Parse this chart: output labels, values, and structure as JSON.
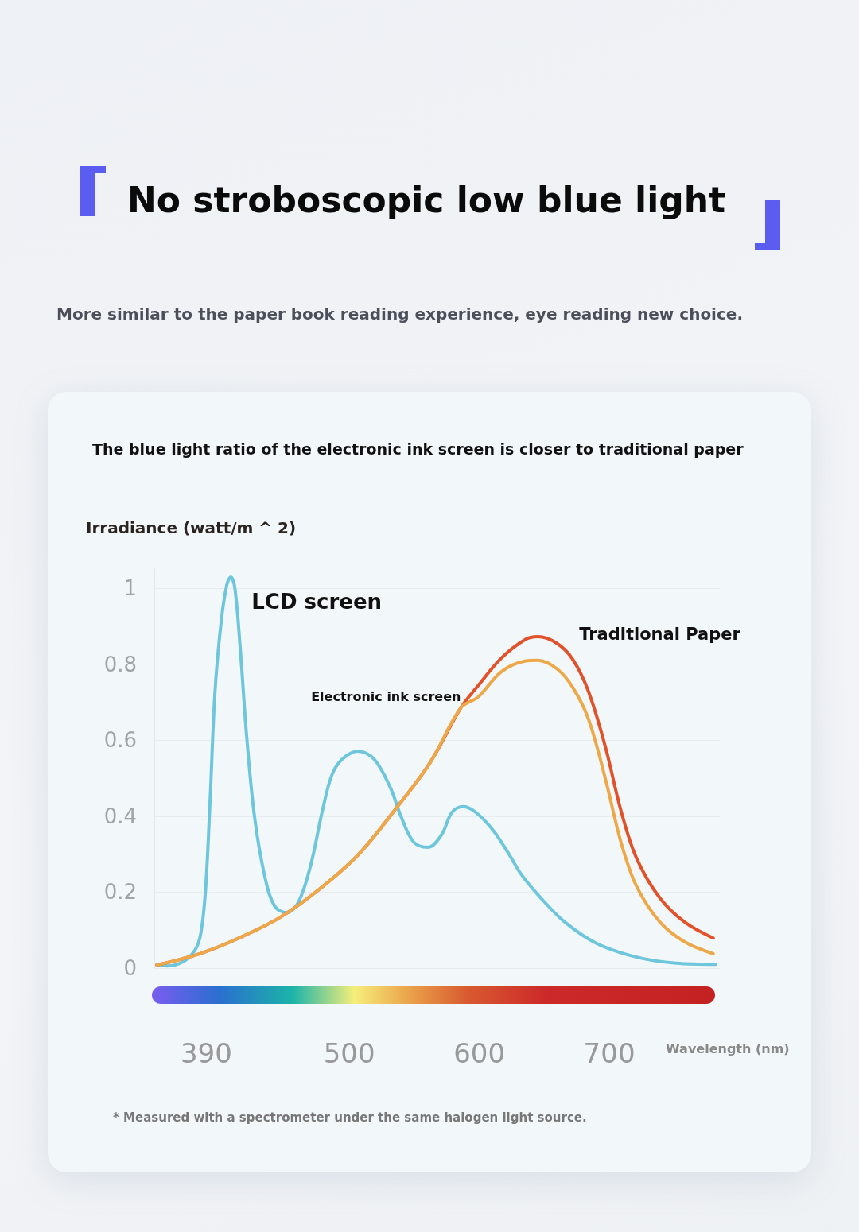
{
  "chart_data": {
    "type": "line",
    "title": "No stroboscopic low blue light",
    "subtitle": "More similar to the paper book reading experience, eye reading new choice.",
    "annotations": [
      "The blue light ratio of the electronic ink screen is closer to traditional paper",
      "* Measured with a spectrometer under the same halogen light source."
    ],
    "xlabel": "Wavelength (nm)",
    "ylabel": "Irradiance (watt/m ^ 2)",
    "xlim": [
      350,
      785
    ],
    "xticks": [
      390,
      500,
      600,
      700
    ],
    "ylim": [
      0,
      1.05
    ],
    "yticks": [
      0,
      0.2,
      0.4,
      0.6,
      0.8,
      1
    ],
    "grid": "y",
    "marker": "none",
    "line_style": "solid",
    "series": [
      {
        "name": "LCD screen",
        "color": "#6ec6dc",
        "x": [
          352.1,
          360,
          372.3,
          381.4,
          385.7,
          389.4,
          393.1,
          396.7,
          401.6,
          405.9,
          408.9,
          412,
          416.3,
          421.2,
          427.3,
          435.3,
          442.6,
          451.8,
          460.9,
          470.1,
          479.3,
          486.6,
          494.6,
          506.8,
          519.1,
          531.3,
          540.5,
          549.7,
          560.7,
          571,
          579,
          587.6,
          597.3,
          610.8,
          623,
          632.2,
          647.5,
          665.8,
          690.3,
          720.9,
          751.5,
          782
        ],
        "values": [
          0.01,
          0.006,
          0.017,
          0.048,
          0.09,
          0.205,
          0.456,
          0.728,
          0.916,
          1.01,
          1.029,
          1,
          0.833,
          0.603,
          0.393,
          0.236,
          0.163,
          0.146,
          0.174,
          0.268,
          0.414,
          0.508,
          0.55,
          0.571,
          0.55,
          0.477,
          0.393,
          0.331,
          0.318,
          0.351,
          0.41,
          0.425,
          0.41,
          0.362,
          0.299,
          0.247,
          0.184,
          0.121,
          0.065,
          0.029,
          0.013,
          0.01
        ]
      },
      {
        "name": "Traditional Paper",
        "color": "#e2522a",
        "x": [
          352,
          385,
          415,
          446,
          476,
          507,
          537,
          562,
          586,
          599,
          617,
          635,
          645,
          660,
          672,
          684,
          697,
          709,
          721,
          739,
          758,
          780
        ],
        "values": [
          0.008,
          0.038,
          0.079,
          0.132,
          0.205,
          0.299,
          0.425,
          0.54,
          0.686,
          0.743,
          0.816,
          0.864,
          0.872,
          0.854,
          0.812,
          0.728,
          0.582,
          0.414,
          0.289,
          0.184,
          0.121,
          0.079
        ]
      },
      {
        "name": "Electronic ink screen",
        "color": "#eda84a",
        "x": [
          352,
          385,
          415,
          446,
          476,
          507,
          537,
          562,
          586,
          599,
          617,
          635,
          645,
          660,
          672,
          684,
          697,
          709,
          721,
          739,
          758,
          780
        ],
        "values": [
          0.008,
          0.038,
          0.079,
          0.132,
          0.205,
          0.299,
          0.425,
          0.54,
          0.686,
          0.713,
          0.78,
          0.808,
          0.81,
          0.787,
          0.738,
          0.655,
          0.498,
          0.331,
          0.215,
          0.121,
          0.069,
          0.038
        ]
      }
    ]
  }
}
